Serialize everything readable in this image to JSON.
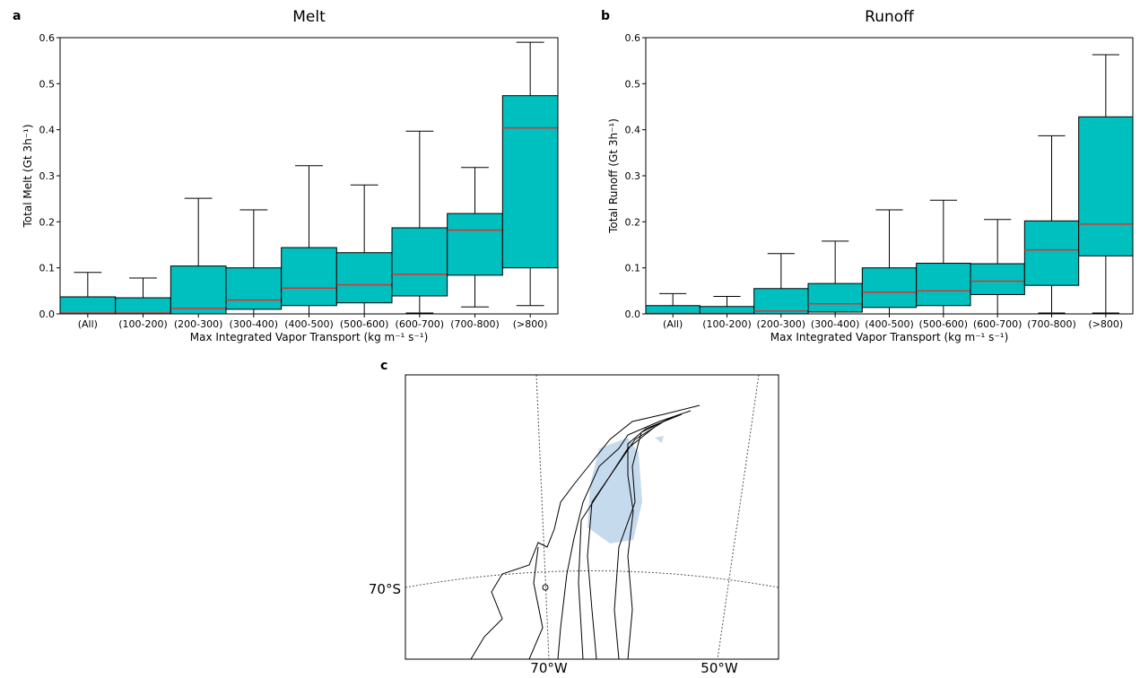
{
  "chart_data": [
    {
      "type": "box",
      "panel": "a",
      "title": "Melt",
      "ylabel": "Total Melt (Gt 3h⁻¹)",
      "xlabel": "Max Integrated Vapor Transport (kg m⁻¹ s⁻¹)",
      "categories": [
        "(All)",
        "(100-200)",
        "(200-300)",
        "(300-400)",
        "(400-500)",
        "(500-600)",
        "(600-700)",
        "(700-800)",
        "(>800)"
      ],
      "whisker_low": [
        0,
        0,
        0,
        0,
        0,
        0,
        0.002,
        0.015,
        0.018
      ],
      "q1": [
        0,
        0,
        0,
        0.01,
        0.018,
        0.024,
        0.039,
        0.084,
        0.1
      ],
      "median": [
        0.002,
        0.002,
        0.012,
        0.03,
        0.056,
        0.063,
        0.086,
        0.182,
        0.404
      ],
      "q3": [
        0.037,
        0.035,
        0.104,
        0.1,
        0.144,
        0.133,
        0.187,
        0.218,
        0.474
      ],
      "whisker_high": [
        0.09,
        0.078,
        0.251,
        0.226,
        0.322,
        0.28,
        0.397,
        0.318,
        0.59
      ],
      "color": "#00bfbf",
      "median_color": "#e0302c",
      "ylim": [
        0,
        0.6
      ],
      "yticks": [
        {
          "value": 0,
          "label": "0.0"
        },
        0.1,
        0.2,
        0.3,
        0.4,
        0.5,
        0.6
      ]
    },
    {
      "type": "box",
      "panel": "b",
      "title": "Runoff",
      "ylabel": "Total Runoff (Gt 3h⁻¹)",
      "xlabel": "Max Integrated Vapor Transport (kg m⁻¹ s⁻¹)",
      "categories": [
        "(All)",
        "(100-200)",
        "(200-300)",
        "(300-400)",
        "(400-500)",
        "(500-600)",
        "(600-700)",
        "(700-800)",
        "(>800)"
      ],
      "whisker_low": [
        0,
        0,
        0,
        0,
        0,
        0,
        0,
        0.002,
        0.002
      ],
      "q1": [
        0,
        0,
        0,
        0.004,
        0.014,
        0.018,
        0.042,
        0.062,
        0.126
      ],
      "median": [
        0.001,
        0.001,
        0.006,
        0.022,
        0.047,
        0.05,
        0.071,
        0.139,
        0.195
      ],
      "q3": [
        0.018,
        0.016,
        0.055,
        0.066,
        0.1,
        0.11,
        0.109,
        0.202,
        0.428
      ],
      "whisker_high": [
        0.044,
        0.038,
        0.131,
        0.158,
        0.226,
        0.247,
        0.205,
        0.387,
        0.563
      ],
      "color": "#00bfbf",
      "median_color": "#e0302c",
      "ylim": [
        0,
        0.6
      ],
      "yticks": [
        {
          "value": 0,
          "label": "0.0"
        },
        0.1,
        0.2,
        0.3,
        0.4,
        0.5,
        0.6
      ]
    },
    {
      "type": "map",
      "panel": "c",
      "lat_label": "70°S",
      "lon_labels": [
        "70°W",
        "50°W"
      ]
    }
  ]
}
